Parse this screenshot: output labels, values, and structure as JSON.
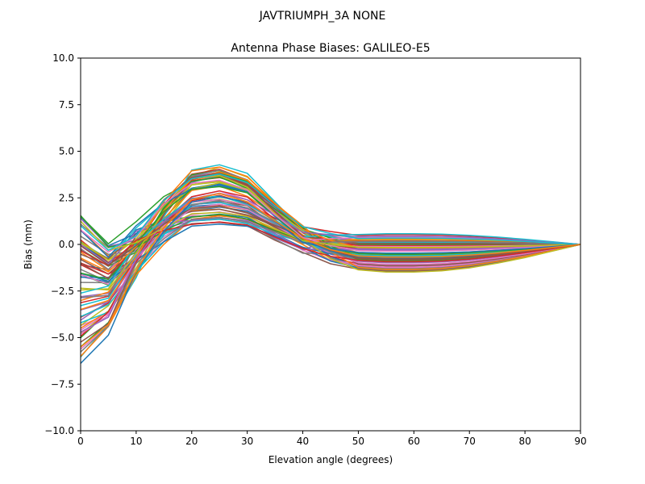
{
  "figure": {
    "suptitle": "JAVTRIUMPH_3A   NONE"
  },
  "chart_data": {
    "type": "line",
    "title": "Antenna Phase Biases: GALILEO-E5",
    "xlabel": "Elevation angle (degrees)",
    "ylabel": "Bias (mm)",
    "xlim": [
      0,
      90
    ],
    "ylim": [
      -10,
      10
    ],
    "x_ticks": [
      "0",
      "10",
      "20",
      "30",
      "40",
      "50",
      "60",
      "70",
      "80",
      "90"
    ],
    "y_ticks": [
      "10.0",
      "7.5",
      "5.0",
      "2.5",
      "0.0",
      "−2.5",
      "−5.0",
      "−7.5",
      "−10.0"
    ],
    "grid": false,
    "legend": "none",
    "x": [
      0,
      5,
      10,
      15,
      20,
      25,
      30,
      35,
      40,
      45,
      50,
      55,
      60,
      65,
      70,
      75,
      80,
      85,
      90
    ],
    "colors": [
      "#1f77b4",
      "#ff7f0e",
      "#2ca02c",
      "#d62728",
      "#9467bd",
      "#8c564b",
      "#e377c2",
      "#7f7f7f",
      "#bcbd22",
      "#17becf"
    ],
    "series_count": 72,
    "envelope": {
      "start_low": -6.4,
      "start_high": 1.7,
      "dip5_low": -4.9,
      "dip5_high": 0.5,
      "at10_low": -2.2,
      "at10_high": 1.3,
      "peak25_low": 1.0,
      "peak25_high": 4.3,
      "at40_low": -0.6,
      "at40_high": 1.2,
      "trough55_low": -1.5,
      "hump65_high": 0.6,
      "end_value": 0.0
    }
  }
}
